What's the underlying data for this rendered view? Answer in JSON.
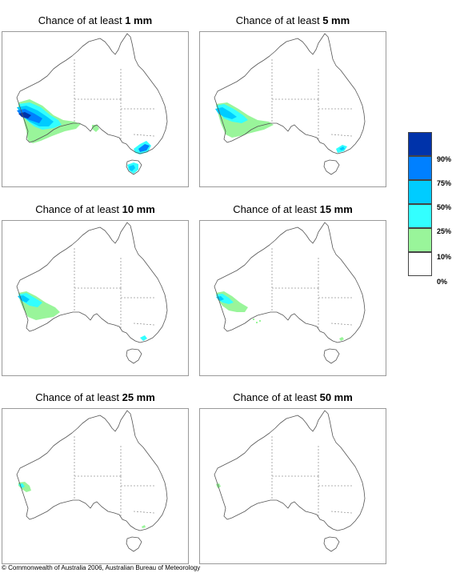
{
  "title_prefix": "Chance of at least",
  "colors": {
    "0-10": "#ffffff",
    "10-25": "#99f59a",
    "25-50": "#33ffff",
    "50-75": "#00ccff",
    "75-90": "#0080ff",
    "90-100": "#0033aa"
  },
  "panels": [
    {
      "amount": "1 mm"
    },
    {
      "amount": "5 mm"
    },
    {
      "amount": "10 mm"
    },
    {
      "amount": "15 mm"
    },
    {
      "amount": "25 mm"
    },
    {
      "amount": "50 mm"
    }
  ],
  "legend": {
    "labels": [
      "90%",
      "75%",
      "50%",
      "25%",
      "10%",
      "0%"
    ]
  },
  "copyright": "© Commonwealth of Australia 2006, Australian Bureau of Meteorology"
}
